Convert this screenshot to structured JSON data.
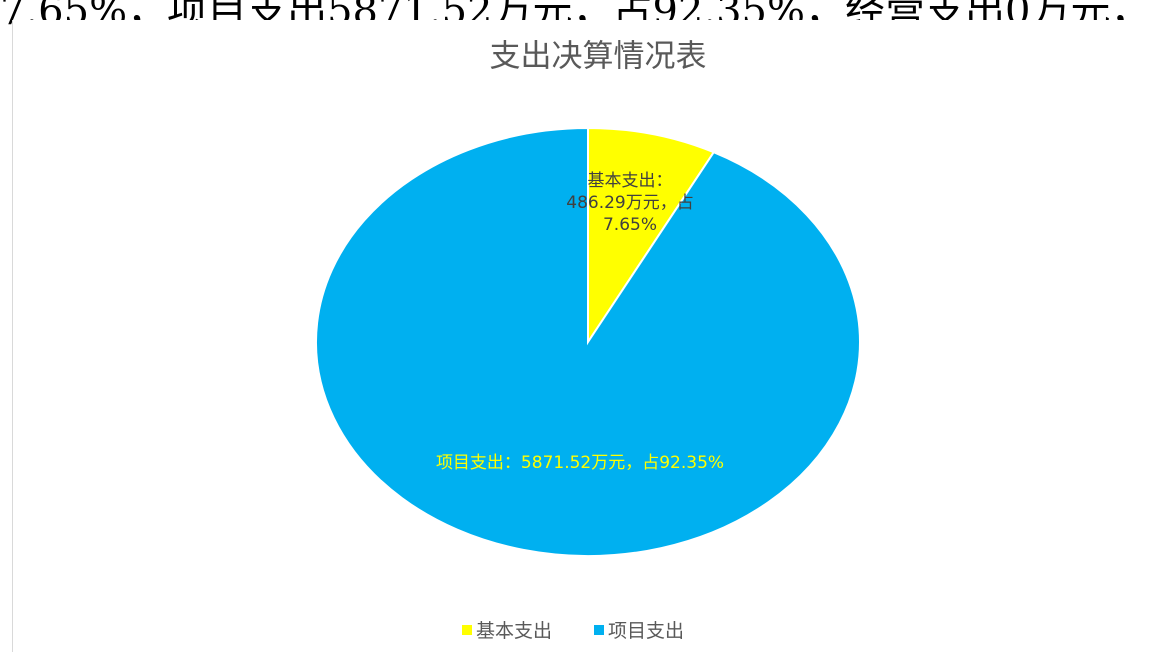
{
  "document_text": "7.65%，项目支出5871.52万元，占92.35%，经营支出0万元，",
  "chart_data": {
    "type": "pie",
    "title": "支出决算情况表",
    "categories": [
      "基本支出",
      "项目支出"
    ],
    "values": [
      486.29,
      5871.52
    ],
    "value_labels": [
      "基本支出：486.29万元，占7.65%",
      "项目支出：5871.52万元，占92.35%"
    ],
    "colors": [
      "#ffff00",
      "#00b0f0"
    ],
    "legend": "bottom"
  }
}
